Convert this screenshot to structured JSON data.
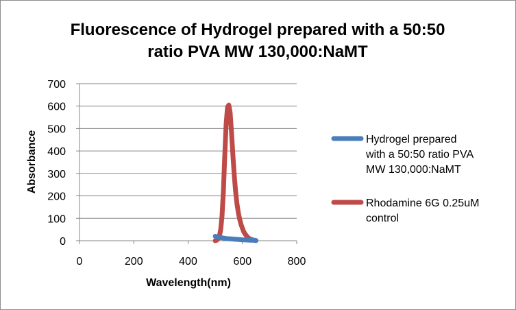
{
  "chart_data": {
    "type": "scatter",
    "title_lines": [
      "Fluorescence of Hydrogel prepared with a 50:50",
      "ratio PVA MW 130,000:NaMT"
    ],
    "xlabel": "Wavelength(nm)",
    "ylabel": "Absorbance",
    "xlim": [
      0,
      800
    ],
    "ylim": [
      0,
      700
    ],
    "x_ticks": [
      "0",
      "200",
      "400",
      "600",
      "800"
    ],
    "y_ticks": [
      "0",
      "100",
      "200",
      "300",
      "400",
      "500",
      "600",
      "700"
    ],
    "grid": "horizontal",
    "legend_position": "right",
    "series": [
      {
        "name": "Hydrogel prepared with a 50:50 ratio PVA MW 130,000:NaMT",
        "legend_lines": [
          "Hydrogel prepared",
          "with a 50:50 ratio PVA",
          "MW 130,000:NaMT"
        ],
        "color": "#4a7ebb",
        "x": [
          500,
          510,
          520,
          530,
          540,
          550,
          560,
          570,
          580,
          590,
          600,
          610,
          620,
          630,
          640,
          650
        ],
        "y": [
          20,
          17,
          14,
          12,
          10,
          9,
          8,
          7,
          6,
          5,
          4,
          4,
          3,
          2,
          2,
          1
        ]
      },
      {
        "name": "Rhodamine 6G 0.25uM control",
        "legend_lines": [
          "Rhodamine 6G 0.25uM",
          "control"
        ],
        "color": "#be4b48",
        "x": [
          500,
          505,
          510,
          515,
          520,
          525,
          530,
          535,
          540,
          545,
          550,
          555,
          560,
          565,
          570,
          575,
          580,
          585,
          590,
          595,
          600,
          605,
          610,
          615,
          620,
          625,
          630,
          635,
          640,
          645,
          650
        ],
        "y": [
          0,
          2,
          8,
          20,
          50,
          110,
          220,
          380,
          520,
          595,
          605,
          570,
          480,
          380,
          290,
          220,
          165,
          125,
          95,
          72,
          55,
          40,
          30,
          22,
          15,
          10,
          7,
          5,
          3,
          2,
          1
        ]
      }
    ]
  }
}
